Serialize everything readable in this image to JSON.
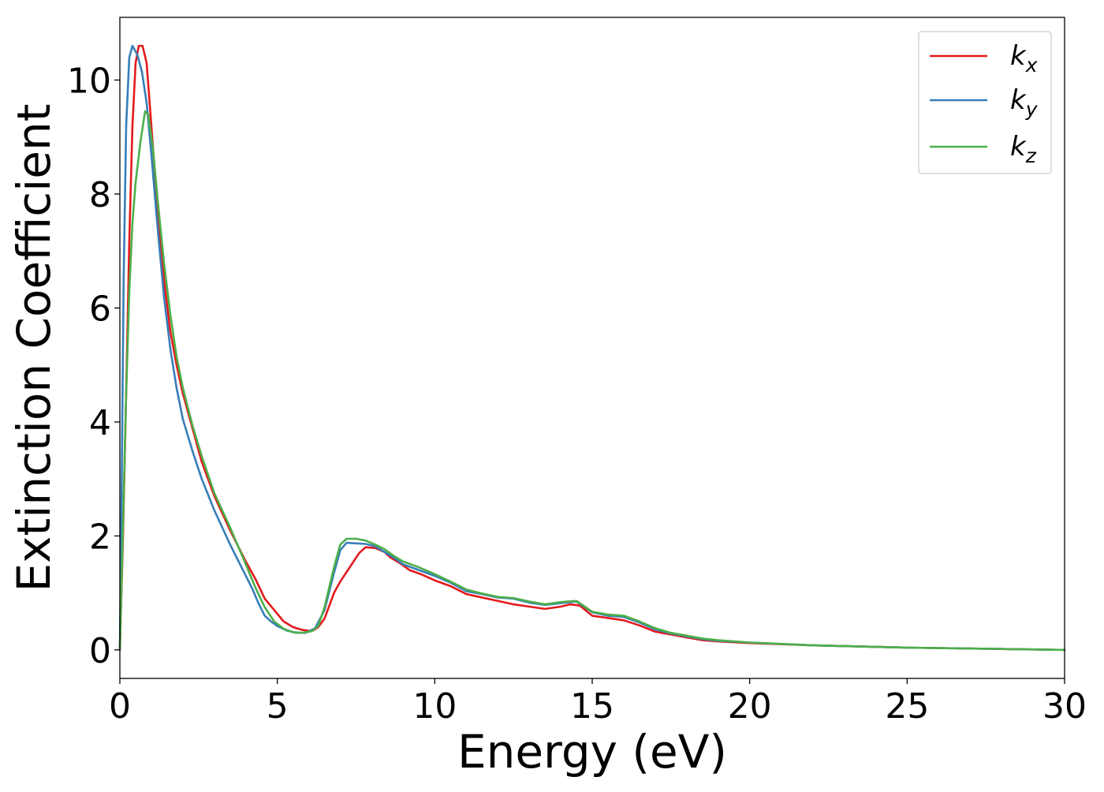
{
  "chart_data": {
    "type": "line",
    "title": "",
    "xlabel": "Energy (eV)",
    "ylabel": "Extinction Coefficient",
    "xlim": [
      0,
      30
    ],
    "ylim": [
      -0.5,
      11.1
    ],
    "xticks": [
      0,
      5,
      10,
      15,
      20,
      25,
      30
    ],
    "xtick_labels": [
      "0",
      "5",
      "10",
      "15",
      "20",
      "25",
      "30"
    ],
    "yticks": [
      0,
      2,
      4,
      6,
      8,
      10
    ],
    "ytick_labels": [
      "0",
      "2",
      "4",
      "6",
      "8",
      "10"
    ],
    "grid": false,
    "legend_position": "top-right",
    "series": [
      {
        "name": "k_x",
        "label_base": "k",
        "label_sub": "x",
        "color": "#e41a1c",
        "points": [
          [
            0,
            0
          ],
          [
            0.1,
            2.0
          ],
          [
            0.2,
            4.5
          ],
          [
            0.3,
            7.2
          ],
          [
            0.4,
            9.2
          ],
          [
            0.5,
            10.3
          ],
          [
            0.6,
            10.6
          ],
          [
            0.72,
            10.6
          ],
          [
            0.85,
            10.3
          ],
          [
            1.0,
            9.2
          ],
          [
            1.2,
            7.7
          ],
          [
            1.4,
            6.5
          ],
          [
            1.6,
            5.6
          ],
          [
            1.8,
            5.0
          ],
          [
            2.0,
            4.5
          ],
          [
            2.3,
            3.9
          ],
          [
            2.6,
            3.3
          ],
          [
            3.0,
            2.7
          ],
          [
            3.5,
            2.1
          ],
          [
            4.0,
            1.55
          ],
          [
            4.3,
            1.25
          ],
          [
            4.6,
            0.9
          ],
          [
            4.9,
            0.7
          ],
          [
            5.2,
            0.5
          ],
          [
            5.5,
            0.4
          ],
          [
            5.8,
            0.35
          ],
          [
            6.1,
            0.33
          ],
          [
            6.3,
            0.4
          ],
          [
            6.5,
            0.55
          ],
          [
            6.8,
            1.0
          ],
          [
            7.0,
            1.2
          ],
          [
            7.3,
            1.45
          ],
          [
            7.6,
            1.7
          ],
          [
            7.8,
            1.8
          ],
          [
            8.1,
            1.79
          ],
          [
            8.4,
            1.72
          ],
          [
            8.6,
            1.62
          ],
          [
            8.9,
            1.52
          ],
          [
            9.2,
            1.4
          ],
          [
            9.6,
            1.32
          ],
          [
            10.0,
            1.22
          ],
          [
            10.5,
            1.12
          ],
          [
            11.0,
            0.98
          ],
          [
            11.5,
            0.92
          ],
          [
            12.0,
            0.86
          ],
          [
            12.5,
            0.8
          ],
          [
            13.0,
            0.76
          ],
          [
            13.5,
            0.72
          ],
          [
            14.0,
            0.76
          ],
          [
            14.3,
            0.8
          ],
          [
            14.6,
            0.78
          ],
          [
            15.0,
            0.6
          ],
          [
            15.5,
            0.56
          ],
          [
            16.0,
            0.52
          ],
          [
            16.5,
            0.43
          ],
          [
            17.0,
            0.32
          ],
          [
            17.5,
            0.27
          ],
          [
            18.0,
            0.22
          ],
          [
            18.5,
            0.17
          ],
          [
            19.0,
            0.15
          ],
          [
            20.0,
            0.12
          ],
          [
            22.0,
            0.08
          ],
          [
            25.0,
            0.04
          ],
          [
            30.0,
            0.0
          ]
        ]
      },
      {
        "name": "k_y",
        "label_base": "k",
        "label_sub": "y",
        "color": "#377eb8",
        "points": [
          [
            0,
            0
          ],
          [
            0.05,
            2.5
          ],
          [
            0.12,
            6.5
          ],
          [
            0.2,
            9.2
          ],
          [
            0.3,
            10.4
          ],
          [
            0.4,
            10.6
          ],
          [
            0.55,
            10.45
          ],
          [
            0.7,
            10.15
          ],
          [
            0.85,
            9.6
          ],
          [
            1.0,
            8.7
          ],
          [
            1.2,
            7.4
          ],
          [
            1.4,
            6.2
          ],
          [
            1.6,
            5.3
          ],
          [
            1.8,
            4.6
          ],
          [
            2.0,
            4.05
          ],
          [
            2.3,
            3.5
          ],
          [
            2.6,
            3.0
          ],
          [
            3.0,
            2.45
          ],
          [
            3.5,
            1.85
          ],
          [
            4.0,
            1.3
          ],
          [
            4.2,
            1.08
          ],
          [
            4.4,
            0.82
          ],
          [
            4.6,
            0.6
          ],
          [
            4.8,
            0.5
          ],
          [
            5.0,
            0.42
          ],
          [
            5.3,
            0.34
          ],
          [
            5.6,
            0.3
          ],
          [
            5.9,
            0.3
          ],
          [
            6.2,
            0.38
          ],
          [
            6.5,
            0.7
          ],
          [
            6.8,
            1.35
          ],
          [
            7.0,
            1.75
          ],
          [
            7.2,
            1.88
          ],
          [
            7.5,
            1.87
          ],
          [
            7.8,
            1.86
          ],
          [
            8.1,
            1.82
          ],
          [
            8.4,
            1.72
          ],
          [
            8.7,
            1.62
          ],
          [
            9.0,
            1.5
          ],
          [
            9.5,
            1.4
          ],
          [
            10.0,
            1.3
          ],
          [
            10.5,
            1.18
          ],
          [
            11.0,
            1.03
          ],
          [
            11.5,
            0.98
          ],
          [
            12.0,
            0.92
          ],
          [
            12.5,
            0.9
          ],
          [
            13.0,
            0.83
          ],
          [
            13.5,
            0.79
          ],
          [
            14.0,
            0.82
          ],
          [
            14.5,
            0.85
          ],
          [
            15.0,
            0.66
          ],
          [
            15.5,
            0.6
          ],
          [
            16.0,
            0.58
          ],
          [
            16.5,
            0.48
          ],
          [
            17.0,
            0.36
          ],
          [
            17.5,
            0.29
          ],
          [
            18.0,
            0.24
          ],
          [
            18.5,
            0.19
          ],
          [
            19.0,
            0.16
          ],
          [
            20.0,
            0.13
          ],
          [
            22.0,
            0.08
          ],
          [
            25.0,
            0.04
          ],
          [
            30.0,
            0.0
          ]
        ]
      },
      {
        "name": "k_z",
        "label_base": "k",
        "label_sub": "z",
        "color": "#4daf4a",
        "points": [
          [
            0,
            0
          ],
          [
            0.1,
            2.2
          ],
          [
            0.2,
            4.5
          ],
          [
            0.3,
            6.3
          ],
          [
            0.4,
            7.5
          ],
          [
            0.5,
            8.2
          ],
          [
            0.65,
            8.9
          ],
          [
            0.8,
            9.45
          ],
          [
            0.9,
            9.4
          ],
          [
            1.05,
            8.8
          ],
          [
            1.2,
            7.9
          ],
          [
            1.4,
            6.8
          ],
          [
            1.6,
            5.9
          ],
          [
            1.8,
            5.15
          ],
          [
            2.0,
            4.6
          ],
          [
            2.3,
            3.95
          ],
          [
            2.6,
            3.4
          ],
          [
            3.0,
            2.75
          ],
          [
            3.5,
            2.15
          ],
          [
            4.0,
            1.5
          ],
          [
            4.3,
            1.1
          ],
          [
            4.6,
            0.75
          ],
          [
            4.9,
            0.5
          ],
          [
            5.2,
            0.37
          ],
          [
            5.5,
            0.31
          ],
          [
            5.8,
            0.3
          ],
          [
            6.1,
            0.33
          ],
          [
            6.3,
            0.42
          ],
          [
            6.5,
            0.75
          ],
          [
            6.8,
            1.45
          ],
          [
            7.0,
            1.85
          ],
          [
            7.2,
            1.95
          ],
          [
            7.5,
            1.95
          ],
          [
            7.8,
            1.92
          ],
          [
            8.1,
            1.85
          ],
          [
            8.4,
            1.77
          ],
          [
            8.7,
            1.65
          ],
          [
            9.0,
            1.55
          ],
          [
            9.5,
            1.45
          ],
          [
            10.0,
            1.33
          ],
          [
            10.5,
            1.2
          ],
          [
            11.0,
            1.06
          ],
          [
            11.5,
            0.99
          ],
          [
            12.0,
            0.93
          ],
          [
            12.5,
            0.91
          ],
          [
            13.0,
            0.85
          ],
          [
            13.5,
            0.8
          ],
          [
            14.0,
            0.84
          ],
          [
            14.5,
            0.86
          ],
          [
            15.0,
            0.67
          ],
          [
            15.5,
            0.62
          ],
          [
            16.0,
            0.6
          ],
          [
            16.5,
            0.5
          ],
          [
            17.0,
            0.38
          ],
          [
            17.5,
            0.3
          ],
          [
            18.0,
            0.25
          ],
          [
            18.5,
            0.2
          ],
          [
            19.0,
            0.17
          ],
          [
            20.0,
            0.13
          ],
          [
            22.0,
            0.08
          ],
          [
            25.0,
            0.04
          ],
          [
            30.0,
            0.0
          ]
        ]
      }
    ]
  }
}
